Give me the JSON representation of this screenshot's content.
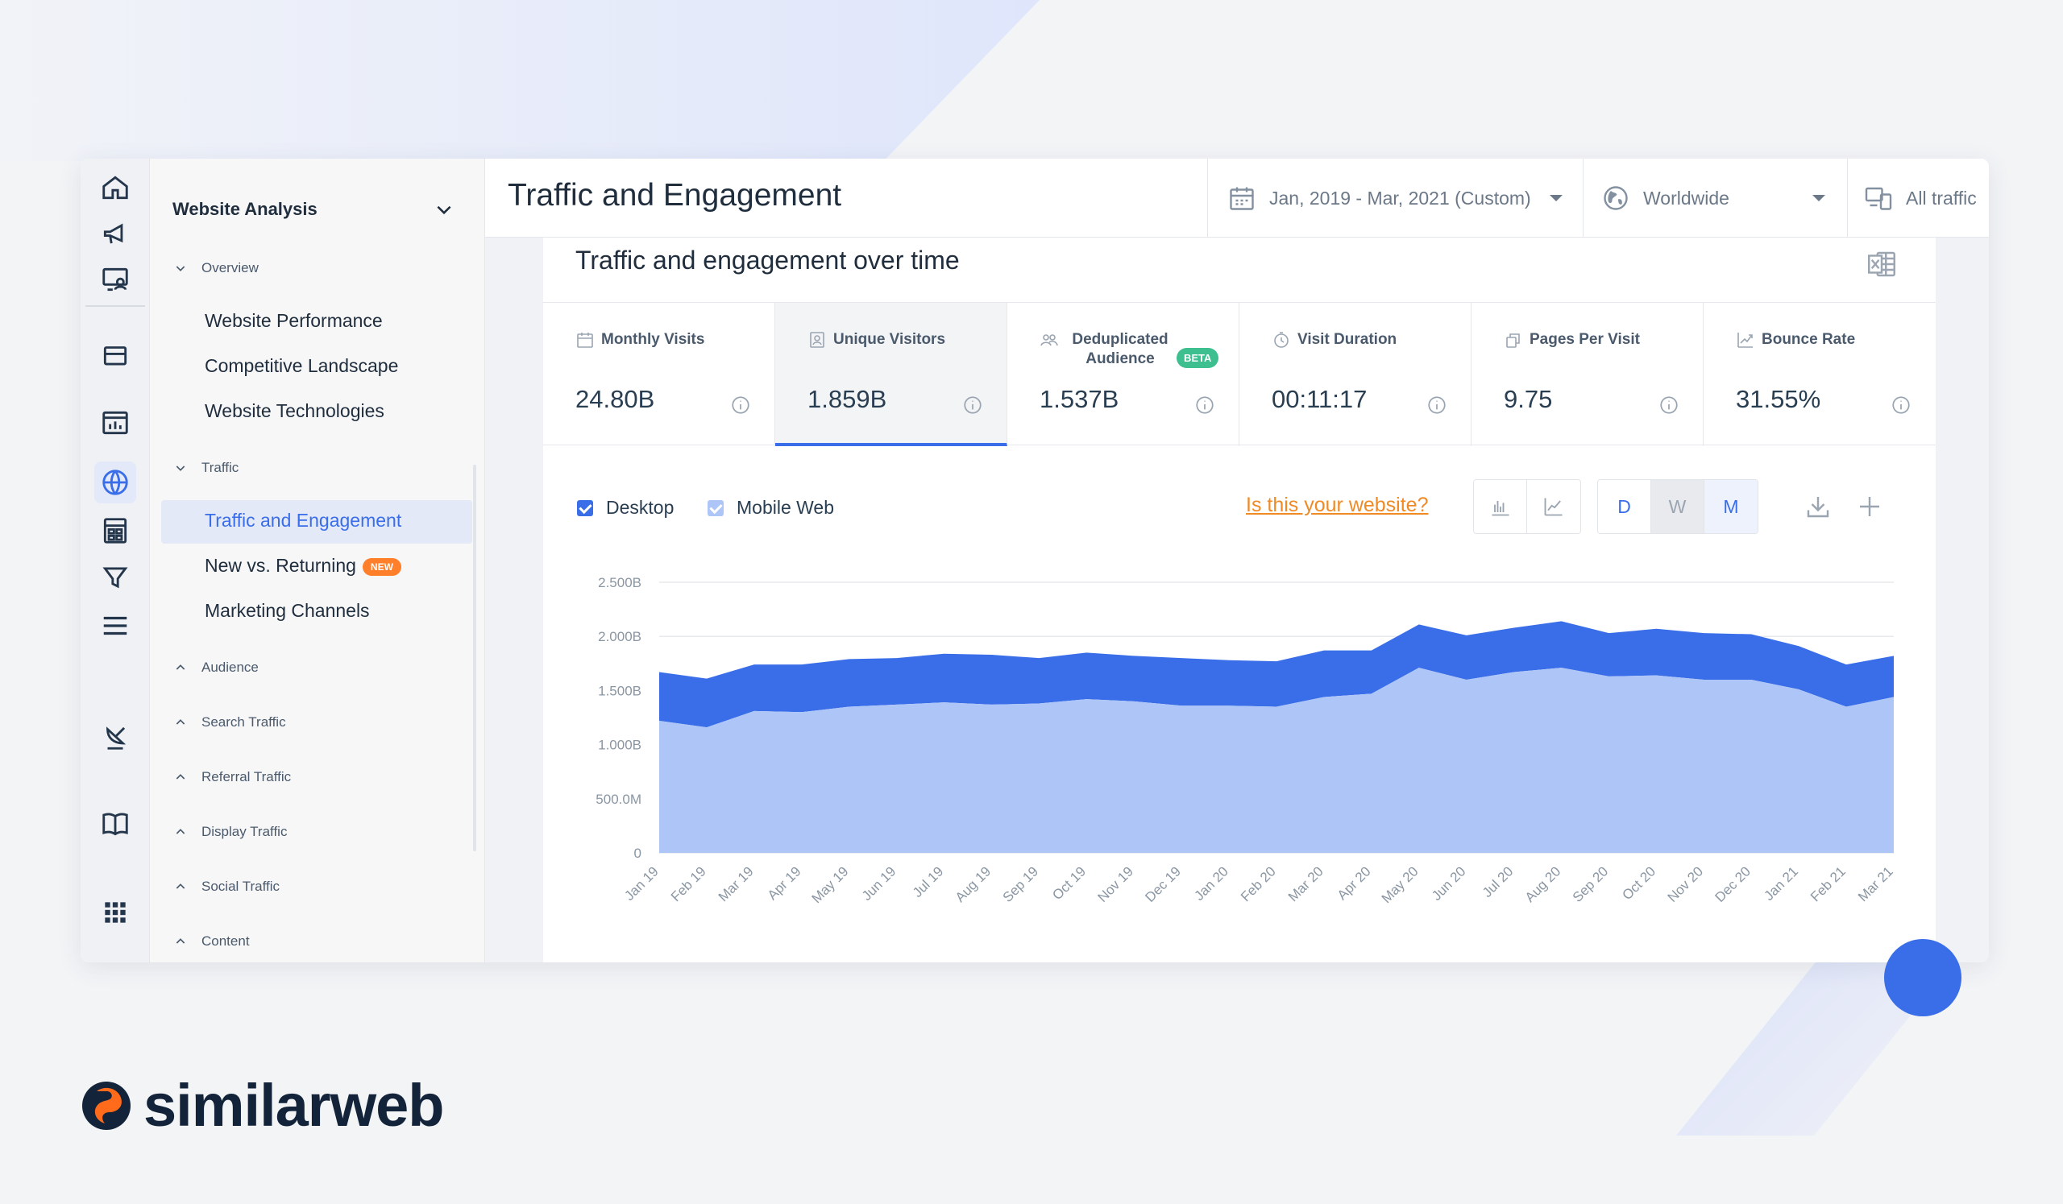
{
  "brand": {
    "name": "similarweb"
  },
  "sidebar": {
    "title": "Website Analysis",
    "sections": [
      {
        "label": "Overview"
      },
      {
        "label": "Traffic"
      },
      {
        "label": "Audience"
      },
      {
        "label": "Search Traffic"
      },
      {
        "label": "Referral Traffic"
      },
      {
        "label": "Display Traffic"
      },
      {
        "label": "Social Traffic"
      },
      {
        "label": "Content"
      }
    ],
    "overview_items": [
      "Website Performance",
      "Competitive Landscape",
      "Website Technologies"
    ],
    "traffic_items": [
      "Traffic and Engagement",
      "New vs. Returning",
      "Marketing Channels"
    ],
    "new_badge": "NEW",
    "active_item": "Traffic and Engagement"
  },
  "header": {
    "title": "Traffic and Engagement",
    "date_range": "Jan, 2019 - Mar, 2021 (Custom)",
    "region": "Worldwide",
    "traffic_type": "All traffic"
  },
  "card": {
    "title": "Traffic and engagement over time",
    "metrics": [
      {
        "label": "Monthly Visits",
        "value": "24.80B",
        "icon": "calendar-icon"
      },
      {
        "label": "Unique Visitors",
        "value": "1.859B",
        "icon": "unique-visitor-icon"
      },
      {
        "label": "Deduplicated Audience",
        "value": "1.537B",
        "icon": "people-icon"
      },
      {
        "label": "Visit Duration",
        "value": "00:11:17",
        "icon": "clock-icon"
      },
      {
        "label": "Pages Per Visit",
        "value": "9.75",
        "icon": "pages-icon"
      },
      {
        "label": "Bounce Rate",
        "value": "31.55%",
        "icon": "bounce-icon"
      }
    ],
    "beta_badge": "BETA",
    "selected_metric": "Unique Visitors",
    "legend": {
      "desktop": "Desktop",
      "mobile": "Mobile Web"
    },
    "your_website_link": "Is this your website?",
    "granularity": {
      "d": "D",
      "w": "W",
      "m": "M",
      "selected": "M"
    }
  },
  "colors": {
    "accent": "#3a6ee8",
    "desktop_series": "#3a6ee8",
    "mobile_series": "#aec6f7",
    "link_orange": "#f08a24",
    "beta_green": "#3dbf8f",
    "new_orange": "#ff7f2a"
  },
  "chart_data": {
    "type": "area",
    "stacked": true,
    "x": [
      "Jan 19",
      "Feb 19",
      "Mar 19",
      "Apr 19",
      "May 19",
      "Jun 19",
      "Jul 19",
      "Aug 19",
      "Sep 19",
      "Oct 19",
      "Nov 19",
      "Dec 19",
      "Jan 20",
      "Feb 20",
      "Mar 20",
      "Apr 20",
      "May 20",
      "Jun 20",
      "Jul 20",
      "Aug 20",
      "Sep 20",
      "Oct 20",
      "Nov 20",
      "Dec 20",
      "Jan 21",
      "Feb 21",
      "Mar 21"
    ],
    "series": [
      {
        "name": "Mobile Web",
        "values": [
          1.22,
          1.16,
          1.31,
          1.3,
          1.35,
          1.37,
          1.39,
          1.37,
          1.38,
          1.42,
          1.4,
          1.36,
          1.36,
          1.35,
          1.44,
          1.47,
          1.71,
          1.6,
          1.67,
          1.71,
          1.63,
          1.64,
          1.6,
          1.6,
          1.51,
          1.35,
          1.44
        ]
      },
      {
        "name": "Desktop",
        "values": [
          0.45,
          0.45,
          0.43,
          0.44,
          0.44,
          0.43,
          0.45,
          0.46,
          0.42,
          0.43,
          0.42,
          0.44,
          0.42,
          0.42,
          0.43,
          0.4,
          0.4,
          0.41,
          0.41,
          0.43,
          0.4,
          0.43,
          0.43,
          0.42,
          0.4,
          0.39,
          0.38
        ]
      }
    ],
    "y_unit": "B",
    "yticks": [
      "0",
      "500.0M",
      "1.000B",
      "1.500B",
      "2.000B",
      "2.500B"
    ],
    "ylim": [
      0,
      2.5
    ],
    "grid": true
  }
}
